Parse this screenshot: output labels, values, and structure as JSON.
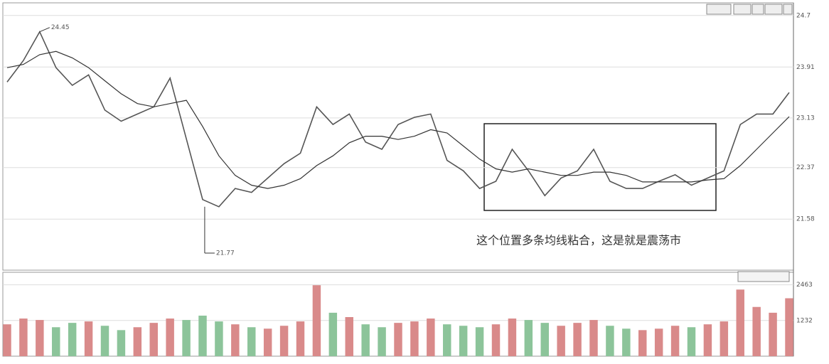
{
  "chart_data": [
    {
      "type": "line",
      "annotation": "这个位置多条均线粘合，这是就是震荡市",
      "high_label": "24.45",
      "low_label": "21.77",
      "ylim": [
        20.82,
        24.85
      ],
      "yticks": [
        24.7,
        23.91,
        23.13,
        22.37,
        21.58
      ],
      "grid": true,
      "series": [
        {
          "color": "#555555",
          "values": [
            23.68,
            24.01,
            24.45,
            23.9,
            23.63,
            23.79,
            23.25,
            23.08,
            23.19,
            23.3,
            23.74,
            22.81,
            21.88,
            21.77,
            22.05,
            21.99,
            22.21,
            22.43,
            22.59,
            23.3,
            23.03,
            23.19,
            22.76,
            22.65,
            23.03,
            23.14,
            23.19,
            22.48,
            22.32,
            22.05,
            22.16,
            22.65,
            22.32,
            21.94,
            22.21,
            22.32,
            22.65,
            22.16,
            22.05,
            22.05,
            22.16,
            22.26,
            22.1,
            22.21,
            22.32,
            23.03,
            23.19,
            23.19,
            23.52
          ]
        },
        {
          "color": "#333333",
          "values": [
            23.9,
            23.95,
            24.1,
            24.15,
            24.05,
            23.9,
            23.7,
            23.5,
            23.35,
            23.3,
            23.35,
            23.4,
            23.0,
            22.55,
            22.25,
            22.1,
            22.05,
            22.1,
            22.2,
            22.4,
            22.55,
            22.75,
            22.85,
            22.85,
            22.8,
            22.85,
            22.95,
            22.9,
            22.7,
            22.5,
            22.35,
            22.3,
            22.35,
            22.3,
            22.25,
            22.25,
            22.3,
            22.3,
            22.25,
            22.15,
            22.15,
            22.15,
            22.15,
            22.18,
            22.2,
            22.4,
            22.65,
            22.9,
            23.15
          ]
        }
      ]
    },
    {
      "type": "bar",
      "ylim": [
        0,
        2700
      ],
      "yticks": [
        2463,
        1232
      ],
      "grid": true,
      "up_color": "#d98a8a",
      "down_color": "#8cc49a",
      "values": [
        1100,
        1300,
        1250,
        1000,
        1150,
        1200,
        1050,
        900,
        1000,
        1150,
        1300,
        1250,
        1400,
        1200,
        1100,
        1000,
        950,
        1050,
        1200,
        2450,
        1500,
        1350,
        1100,
        1000,
        1150,
        1200,
        1300,
        1100,
        1050,
        1000,
        1100,
        1300,
        1250,
        1150,
        1050,
        1150,
        1250,
        1050,
        950,
        900,
        950,
        1050,
        1000,
        1100,
        1200,
        2300,
        1700,
        1500,
        2000
      ]
    }
  ]
}
